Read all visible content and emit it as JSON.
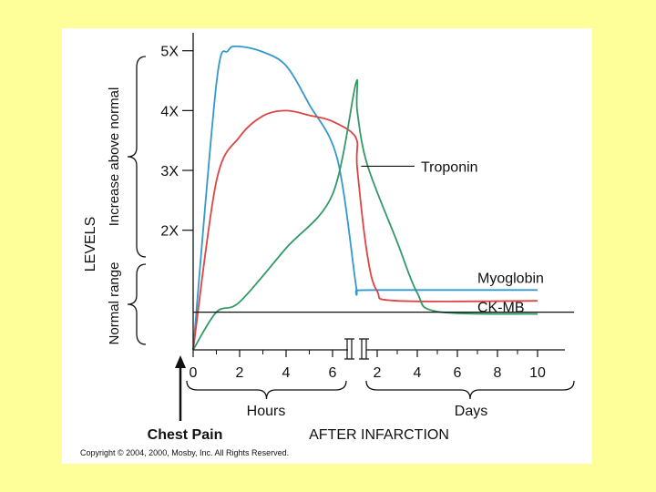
{
  "chart_data": {
    "type": "line",
    "title": "",
    "ylabel": "LEVELS",
    "y_upper_label": "Increase above normal",
    "y_lower_label": "Normal range",
    "ylim": [
      0,
      5.3
    ],
    "y_ticks": [
      {
        "value": 5,
        "label": "5X"
      },
      {
        "value": 4,
        "label": "4X"
      },
      {
        "value": 3,
        "label": "3X"
      },
      {
        "value": 2,
        "label": "2X"
      }
    ],
    "normal_line_value": 0.63,
    "x_ticks": [
      {
        "value": 0,
        "label": "0"
      },
      {
        "value": 2,
        "label": "2"
      },
      {
        "value": 4,
        "label": "4"
      },
      {
        "value": 6,
        "label": "6"
      },
      {
        "value": 9,
        "label": "2"
      },
      {
        "value": 11,
        "label": "4"
      },
      {
        "value": 13,
        "label": "6"
      },
      {
        "value": 15,
        "label": "8"
      },
      {
        "value": 17,
        "label": "10"
      }
    ],
    "hours_label": "Hours",
    "days_label": "Days",
    "xlabel": "AFTER INFARCTION",
    "event_label": "Chest Pain",
    "series": [
      {
        "name": "Myoglobin",
        "color": "#3399cc",
        "points": [
          [
            0,
            0
          ],
          [
            1,
            4.45
          ],
          [
            1.5,
            5.0
          ],
          [
            2,
            5.07
          ],
          [
            3,
            4.98
          ],
          [
            4,
            4.75
          ],
          [
            5,
            4.1
          ],
          [
            6.2,
            3.2
          ],
          [
            7,
            1.1
          ],
          [
            8,
            1.0
          ],
          [
            9,
            1.0
          ],
          [
            17,
            1.0
          ]
        ]
      },
      {
        "name": "Troponin",
        "color": "#dd4444",
        "points": [
          [
            0,
            0
          ],
          [
            1,
            2.82
          ],
          [
            2,
            3.56
          ],
          [
            3,
            3.91
          ],
          [
            4,
            4.0
          ],
          [
            5,
            3.92
          ],
          [
            6,
            3.82
          ],
          [
            7,
            3.55
          ],
          [
            8,
            3.05
          ],
          [
            8.5,
            1.6
          ],
          [
            9,
            0.98
          ],
          [
            10,
            0.82
          ],
          [
            17,
            0.82
          ]
        ]
      },
      {
        "name": "CK-MB",
        "color": "#339966",
        "points": [
          [
            0,
            0
          ],
          [
            1,
            0.63
          ],
          [
            2,
            0.8
          ],
          [
            4,
            1.7
          ],
          [
            6,
            2.6
          ],
          [
            7,
            4.45
          ],
          [
            8,
            4.0
          ],
          [
            8.5,
            3.1
          ],
          [
            10,
            1.8
          ],
          [
            11,
            0.95
          ],
          [
            12,
            0.64
          ],
          [
            17,
            0.6
          ]
        ]
      }
    ],
    "annotations": [
      {
        "label": "Troponin",
        "series": "Troponin"
      },
      {
        "label": "Myoglobin",
        "series": "Myoglobin"
      },
      {
        "label": "CK-MB",
        "series": "CK-MB"
      }
    ]
  },
  "copyright": "Copyright © 2004, 2000, Mosby, Inc. All Rights Reserved."
}
